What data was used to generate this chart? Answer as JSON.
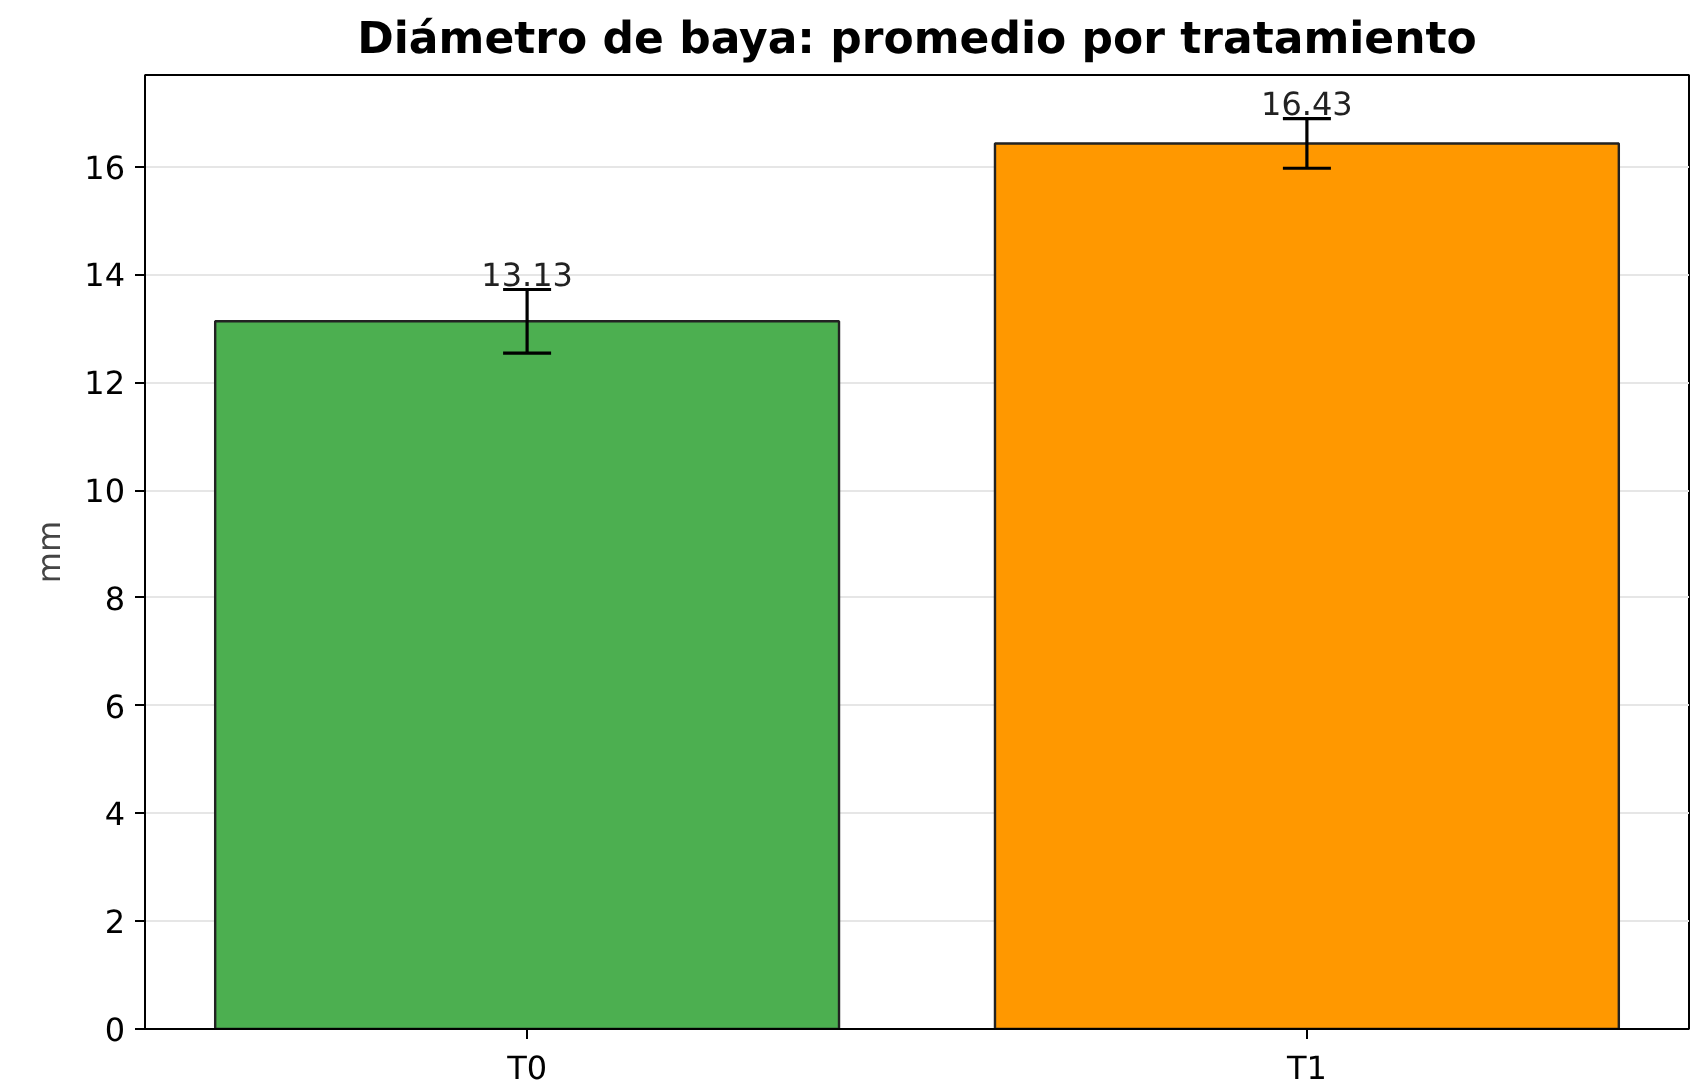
{
  "chart_data": {
    "type": "bar",
    "title": "Diámetro de baya: promedio por tratamiento",
    "ylabel": "mm",
    "categories": [
      "T0",
      "T1"
    ],
    "values": [
      13.13,
      16.43
    ],
    "colors": [
      "#4caf50",
      "#ff9800"
    ],
    "errors": [
      0.59,
      0.46
    ],
    "ylim": [
      0,
      17.7
    ],
    "yticks": [
      0,
      2,
      4,
      6,
      8,
      10,
      12,
      14,
      16
    ],
    "grid": "y",
    "data_labels": true
  }
}
